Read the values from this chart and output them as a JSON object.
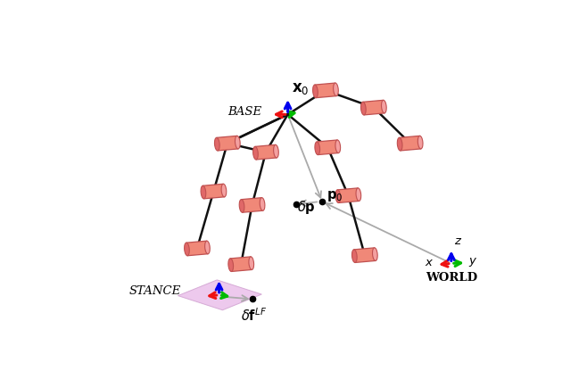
{
  "bg_color": "#ffffff",
  "cylinder_color": "#f08878",
  "cylinder_face_color": "#f4a0a0",
  "cylinder_edge_color": "#c05050",
  "cylinder_dark_color": "#e06868",
  "link_color": "#111111",
  "frame_colors": {
    "x": "#ee1111",
    "y": "#00bb00",
    "z": "#0000ee"
  },
  "arrow_color": "#999999",
  "stance_plane_color": "#e8b8e8",
  "figsize": [
    6.58,
    4.34
  ],
  "dpi": 100,
  "xlim": [
    0,
    6.58
  ],
  "ylim": [
    0,
    4.34
  ],
  "base_x": 3.1,
  "base_y": 3.35,
  "world_x": 5.48,
  "world_y": 1.18,
  "stance_x": 2.1,
  "stance_y": 0.72
}
